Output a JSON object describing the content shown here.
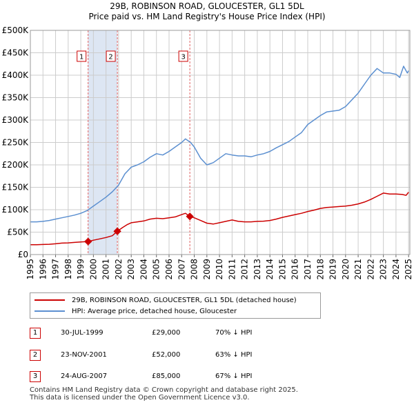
{
  "header": {
    "title_line1": "29B, ROBINSON ROAD, GLOUCESTER, GL1 5DL",
    "title_line2": "Price paid vs. HM Land Registry's House Price Index (HPI)"
  },
  "colors": {
    "property_line": "#cc0000",
    "hpi_line": "#5b8fd0",
    "shade": "#dde6f3",
    "marker_border": "#cc0000",
    "vline": "#e06060"
  },
  "chart_data": {
    "type": "line",
    "title": "Price paid vs. HM Land Registry's House Price Index (HPI)",
    "xlim": [
      1995,
      2025.1
    ],
    "ylim": [
      0,
      500000
    ],
    "y_ticks": [
      {
        "value": 0,
        "label": "£0"
      },
      {
        "value": 50000,
        "label": "£50K"
      },
      {
        "value": 100000,
        "label": "£100K"
      },
      {
        "value": 150000,
        "label": "£150K"
      },
      {
        "value": 200000,
        "label": "£200K"
      },
      {
        "value": 250000,
        "label": "£250K"
      },
      {
        "value": 300000,
        "label": "£300K"
      },
      {
        "value": 350000,
        "label": "£350K"
      },
      {
        "value": 400000,
        "label": "£400K"
      },
      {
        "value": 450000,
        "label": "£450K"
      },
      {
        "value": 500000,
        "label": "£500K"
      }
    ],
    "x_ticks": [
      "1995",
      "1996",
      "1997",
      "1998",
      "1999",
      "2000",
      "2001",
      "2002",
      "2003",
      "2004",
      "2005",
      "2006",
      "2007",
      "2008",
      "2009",
      "2010",
      "2011",
      "2012",
      "2013",
      "2014",
      "2015",
      "2016",
      "2017",
      "2018",
      "2019",
      "2020",
      "2021",
      "2022",
      "2023",
      "2024",
      "2025"
    ],
    "shaded_ranges": [
      [
        1999.58,
        2001.9
      ]
    ],
    "series": [
      {
        "name": "29B, ROBINSON ROAD, GLOUCESTER, GL1 5DL (detached house)",
        "key": "property",
        "x": [
          1995,
          1995.5,
          1996,
          1996.5,
          1997,
          1997.5,
          1998,
          1998.5,
          1999,
          1999.58,
          2000,
          2000.5,
          2001,
          2001.5,
          2001.9,
          2002.3,
          2002.7,
          2003,
          2003.5,
          2004,
          2004.5,
          2005,
          2005.5,
          2006,
          2006.5,
          2007,
          2007.3,
          2007.65,
          2008,
          2008.5,
          2009,
          2009.5,
          2010,
          2010.5,
          2011,
          2011.5,
          2012,
          2012.5,
          2013,
          2013.5,
          2014,
          2014.5,
          2015,
          2015.5,
          2016,
          2016.5,
          2017,
          2017.5,
          2018,
          2018.5,
          2019,
          2019.5,
          2020,
          2020.5,
          2021,
          2021.5,
          2022,
          2022.5,
          2023,
          2023.5,
          2024,
          2024.5,
          2024.8,
          2025
        ],
        "values": [
          22000,
          22000,
          22500,
          23000,
          24000,
          25500,
          26000,
          27000,
          28000,
          29000,
          32000,
          35000,
          38000,
          42000,
          52000,
          60000,
          67000,
          71000,
          73000,
          75000,
          79000,
          81000,
          80000,
          82000,
          84000,
          89000,
          92000,
          85000,
          82000,
          76000,
          70000,
          68000,
          71000,
          74000,
          77000,
          74000,
          73000,
          73000,
          74000,
          74500,
          76000,
          79000,
          83000,
          86000,
          89000,
          92000,
          96000,
          99000,
          103000,
          105000,
          106000,
          107000,
          108000,
          110000,
          113000,
          117000,
          123000,
          130000,
          137000,
          135000,
          135000,
          134000,
          132000,
          139000
        ]
      },
      {
        "name": "HPI: Average price, detached house, Gloucester",
        "key": "hpi",
        "x": [
          1995,
          1995.5,
          1996,
          1996.5,
          1997,
          1997.5,
          1998,
          1998.5,
          1999,
          1999.5,
          2000,
          2000.5,
          2001,
          2001.5,
          2002,
          2002.5,
          2003,
          2003.5,
          2004,
          2004.5,
          2005,
          2005.5,
          2006,
          2006.5,
          2007,
          2007.3,
          2007.7,
          2008,
          2008.5,
          2009,
          2009.5,
          2010,
          2010.5,
          2011,
          2011.5,
          2012,
          2012.5,
          2013,
          2013.5,
          2014,
          2014.5,
          2015,
          2015.5,
          2016,
          2016.5,
          2017,
          2017.5,
          2018,
          2018.5,
          2019,
          2019.5,
          2020,
          2020.5,
          2021,
          2021.5,
          2022,
          2022.5,
          2023,
          2023.5,
          2024,
          2024.3,
          2024.6,
          2024.9,
          2025
        ],
        "values": [
          73000,
          73000,
          74000,
          76000,
          79000,
          82000,
          85000,
          88000,
          92000,
          98000,
          108000,
          118000,
          128000,
          140000,
          155000,
          180000,
          195000,
          200000,
          207000,
          217000,
          225000,
          222000,
          230000,
          240000,
          250000,
          258000,
          250000,
          240000,
          215000,
          200000,
          205000,
          215000,
          225000,
          222000,
          220000,
          220000,
          218000,
          222000,
          225000,
          230000,
          238000,
          245000,
          252000,
          262000,
          272000,
          290000,
          300000,
          310000,
          318000,
          320000,
          322000,
          330000,
          345000,
          360000,
          380000,
          400000,
          415000,
          405000,
          405000,
          402000,
          395000,
          420000,
          405000,
          410000
        ]
      }
    ],
    "annotations": [
      {
        "label": "1",
        "x": 1999.58,
        "y": 29000
      },
      {
        "label": "2",
        "x": 2001.9,
        "y": 52000
      },
      {
        "label": "3",
        "x": 2007.65,
        "y": 85000
      }
    ]
  },
  "legend": {
    "property_label": "29B, ROBINSON ROAD, GLOUCESTER, GL1 5DL (detached house)",
    "hpi_label": "HPI: Average price, detached house, Gloucester"
  },
  "transactions": [
    {
      "num": "1",
      "date": "30-JUL-1999",
      "price": "£29,000",
      "hpi": "70% ↓ HPI"
    },
    {
      "num": "2",
      "date": "23-NOV-2001",
      "price": "£52,000",
      "hpi": "63% ↓ HPI"
    },
    {
      "num": "3",
      "date": "24-AUG-2007",
      "price": "£85,000",
      "hpi": "67% ↓ HPI"
    }
  ],
  "footer": {
    "line1": "Contains HM Land Registry data © Crown copyright and database right 2025.",
    "line2": "This data is licensed under the Open Government Licence v3.0."
  }
}
